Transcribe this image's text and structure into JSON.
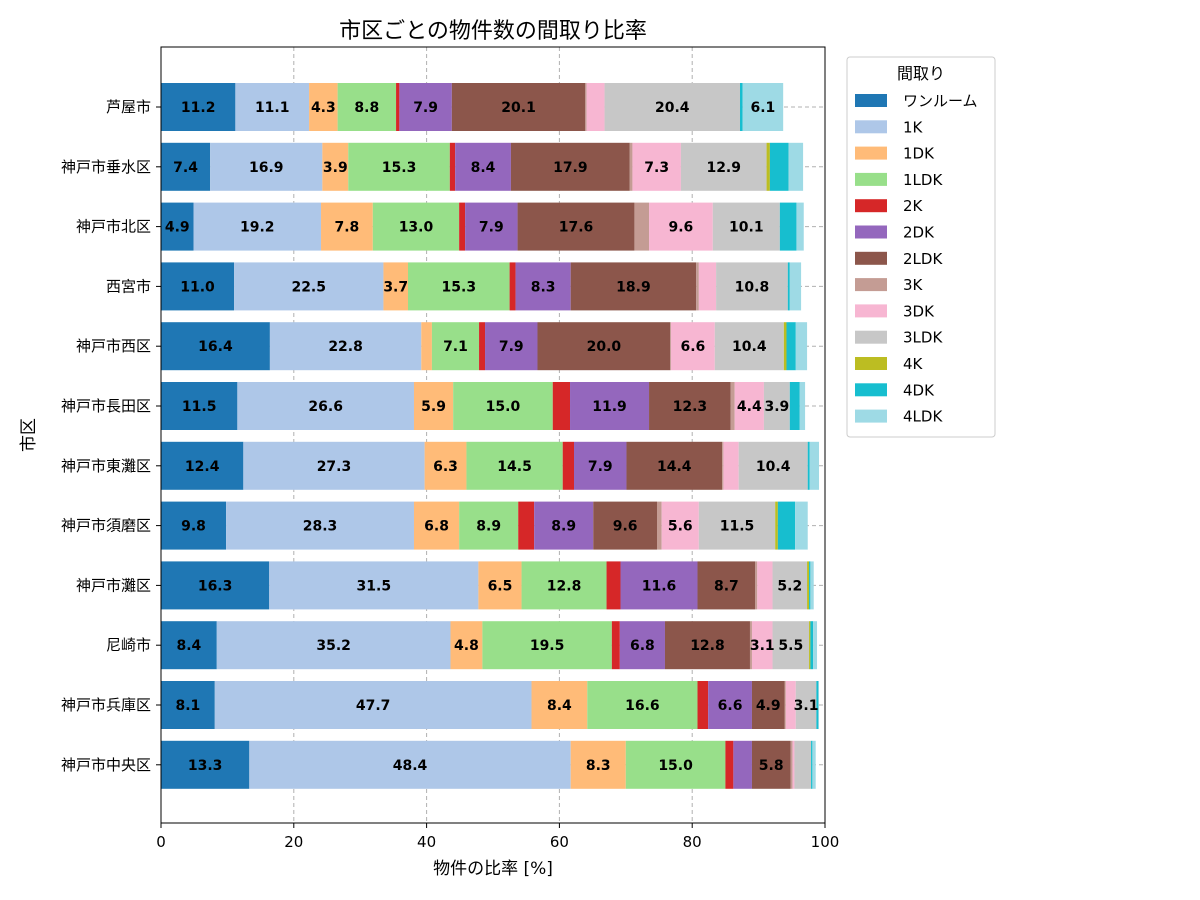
{
  "chart_data": {
    "type": "bar",
    "orientation": "horizontal",
    "stacked": true,
    "title": "市区ごとの物件数の間取り比率",
    "xlabel": "物件の比率 [%]",
    "ylabel": "市区",
    "xlim": [
      0,
      100
    ],
    "xticks": [
      0,
      20,
      40,
      60,
      80,
      100
    ],
    "grid": true,
    "legend_title": "間取り",
    "legend_position": "outside-top-right",
    "categories": [
      "芦屋市",
      "神戸市垂水区",
      "神戸市北区",
      "西宮市",
      "神戸市西区",
      "神戸市長田区",
      "神戸市東灘区",
      "神戸市須磨区",
      "神戸市灘区",
      "尼崎市",
      "神戸市兵庫区",
      "神戸市中央区"
    ],
    "series": [
      {
        "name": "ワンルーム",
        "color": "#1f77b4",
        "values": [
          11.2,
          7.4,
          4.9,
          11.0,
          16.4,
          11.5,
          12.4,
          9.8,
          16.3,
          8.4,
          8.1,
          13.3
        ]
      },
      {
        "name": "1K",
        "color": "#aec7e8",
        "values": [
          11.1,
          16.9,
          19.2,
          22.5,
          22.8,
          26.6,
          27.3,
          28.3,
          31.5,
          35.2,
          47.7,
          48.4
        ]
      },
      {
        "name": "1DK",
        "color": "#ffbb78",
        "values": [
          4.3,
          3.9,
          7.8,
          3.7,
          1.6,
          5.9,
          6.3,
          6.8,
          6.5,
          4.8,
          8.4,
          8.3
        ]
      },
      {
        "name": "1LDK",
        "color": "#98df8a",
        "values": [
          8.8,
          15.3,
          13.0,
          15.3,
          7.1,
          15.0,
          14.5,
          8.9,
          12.8,
          19.5,
          16.6,
          15.0
        ]
      },
      {
        "name": "2K",
        "color": "#d62728",
        "values": [
          0.5,
          0.8,
          0.9,
          0.9,
          0.9,
          2.6,
          1.7,
          2.4,
          2.1,
          1.2,
          1.6,
          1.2
        ]
      },
      {
        "name": "2DK",
        "color": "#9467bd",
        "values": [
          7.9,
          8.4,
          7.9,
          8.3,
          7.9,
          11.9,
          7.9,
          8.9,
          11.6,
          6.8,
          6.6,
          2.8
        ]
      },
      {
        "name": "2LDK",
        "color": "#8c564b",
        "values": [
          20.1,
          17.9,
          17.6,
          18.9,
          20.0,
          12.3,
          14.4,
          9.6,
          8.7,
          12.8,
          4.9,
          5.8
        ]
      },
      {
        "name": "3K",
        "color": "#c49c94",
        "values": [
          0.2,
          0.4,
          2.2,
          0.4,
          0.1,
          0.6,
          0.2,
          0.7,
          0.3,
          0.3,
          0.2,
          0.3
        ]
      },
      {
        "name": "3DK",
        "color": "#f7b6d2",
        "values": [
          2.7,
          7.3,
          9.6,
          2.6,
          6.6,
          4.4,
          2.3,
          5.6,
          2.3,
          3.1,
          1.5,
          0.3
        ]
      },
      {
        "name": "3LDK",
        "color": "#c7c7c7",
        "values": [
          20.4,
          12.9,
          10.1,
          10.8,
          10.4,
          3.9,
          10.4,
          11.5,
          5.2,
          5.5,
          3.1,
          2.5
        ]
      },
      {
        "name": "4K",
        "color": "#bcbd22",
        "values": [
          0.0,
          0.5,
          0.0,
          0.0,
          0.4,
          0.0,
          0.0,
          0.4,
          0.3,
          0.2,
          0.0,
          0.0
        ]
      },
      {
        "name": "4DK",
        "color": "#17becf",
        "values": [
          0.4,
          2.8,
          2.5,
          0.3,
          1.4,
          1.5,
          0.3,
          2.6,
          0.2,
          0.4,
          0.3,
          0.2
        ]
      },
      {
        "name": "4LDK",
        "color": "#9edae5",
        "values": [
          6.1,
          2.2,
          1.1,
          1.7,
          1.7,
          0.8,
          1.4,
          1.9,
          0.5,
          0.6,
          0.1,
          0.5
        ]
      }
    ],
    "label_min_value": 3.0
  }
}
